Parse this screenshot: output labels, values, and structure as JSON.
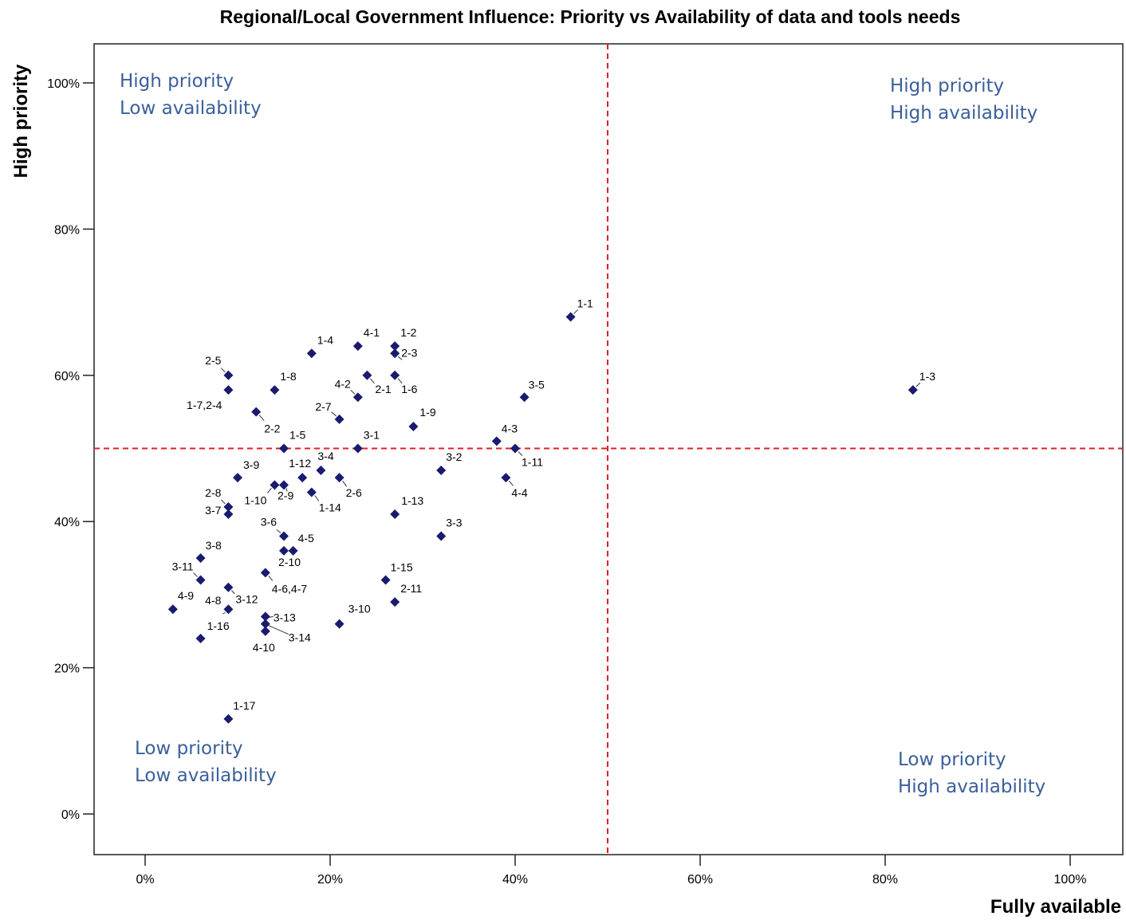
{
  "chart_data": {
    "type": "scatter",
    "title": "Regional/Local Government Influence: Priority vs Availability of data and tools needs",
    "xlabel": "Fully available",
    "ylabel": "High priority",
    "xlim": [
      -5,
      105
    ],
    "ylim": [
      -5,
      105
    ],
    "x_ticks": [
      {
        "value": 0,
        "label": "0%"
      },
      {
        "value": 20,
        "label": "20%"
      },
      {
        "value": 40,
        "label": "40%"
      },
      {
        "value": 60,
        "label": "60%"
      },
      {
        "value": 80,
        "label": "80%"
      },
      {
        "value": 100,
        "label": "100%"
      }
    ],
    "y_ticks": [
      {
        "value": 0,
        "label": "0%"
      },
      {
        "value": 20,
        "label": "20%"
      },
      {
        "value": 40,
        "label": "40%"
      },
      {
        "value": 60,
        "label": "60%"
      },
      {
        "value": 80,
        "label": "80%"
      },
      {
        "value": 100,
        "label": "100%"
      }
    ],
    "reference_lines": {
      "x": 50,
      "y": 50,
      "color": "#e02020",
      "style": "dashed"
    },
    "point_color": "#1a1a6e",
    "quadrant_labels": [
      {
        "lines": [
          "High priority",
          "Low availability"
        ],
        "position": "top-left"
      },
      {
        "lines": [
          "High priority",
          "High availability"
        ],
        "position": "top-right"
      },
      {
        "lines": [
          "Low priority",
          "Low availability"
        ],
        "position": "bottom-left"
      },
      {
        "lines": [
          "Low priority",
          "High availability"
        ],
        "position": "bottom-right"
      }
    ],
    "grid": false,
    "legend": "none",
    "points": [
      {
        "x": 46,
        "y": 68,
        "label": "1-1"
      },
      {
        "x": 83,
        "y": 58,
        "label": "1-3"
      },
      {
        "x": 27,
        "y": 64,
        "label": "1-2"
      },
      {
        "x": 23,
        "y": 64,
        "label": "4-1"
      },
      {
        "x": 18,
        "y": 63,
        "label": "1-4"
      },
      {
        "x": 27,
        "y": 63,
        "label": "2-3"
      },
      {
        "x": 9,
        "y": 60,
        "label": "2-5"
      },
      {
        "x": 14,
        "y": 58,
        "label": "1-8"
      },
      {
        "x": 9,
        "y": 58,
        "label": "1-7,2-4"
      },
      {
        "x": 24,
        "y": 60,
        "label": "2-1"
      },
      {
        "x": 27,
        "y": 60,
        "label": "1-6"
      },
      {
        "x": 23,
        "y": 57,
        "label": "4-2"
      },
      {
        "x": 41,
        "y": 57,
        "label": "3-5"
      },
      {
        "x": 21,
        "y": 54,
        "label": "2-7"
      },
      {
        "x": 29,
        "y": 53,
        "label": "1-9"
      },
      {
        "x": 12,
        "y": 55,
        "label": "2-2"
      },
      {
        "x": 15,
        "y": 50,
        "label": "1-5"
      },
      {
        "x": 23,
        "y": 50,
        "label": "3-1"
      },
      {
        "x": 38,
        "y": 51,
        "label": "4-3"
      },
      {
        "x": 40,
        "y": 50,
        "label": "1-11"
      },
      {
        "x": 32,
        "y": 47,
        "label": "3-2"
      },
      {
        "x": 39,
        "y": 46,
        "label": "4-4"
      },
      {
        "x": 10,
        "y": 46,
        "label": "3-9"
      },
      {
        "x": 17,
        "y": 46,
        "label": "1-12"
      },
      {
        "x": 19,
        "y": 47,
        "label": "3-4"
      },
      {
        "x": 14,
        "y": 45,
        "label": "1-10"
      },
      {
        "x": 15,
        "y": 45,
        "label": "2-9"
      },
      {
        "x": 18,
        "y": 44,
        "label": "1-14"
      },
      {
        "x": 21,
        "y": 46,
        "label": "2-6"
      },
      {
        "x": 9,
        "y": 42,
        "label": "2-8"
      },
      {
        "x": 9,
        "y": 41,
        "label": "3-7"
      },
      {
        "x": 27,
        "y": 41,
        "label": "1-13"
      },
      {
        "x": 15,
        "y": 38,
        "label": "3-6"
      },
      {
        "x": 16,
        "y": 36,
        "label": "4-5"
      },
      {
        "x": 15,
        "y": 36,
        "label": "2-10"
      },
      {
        "x": 32,
        "y": 38,
        "label": "3-3"
      },
      {
        "x": 6,
        "y": 35,
        "label": "3-8"
      },
      {
        "x": 6,
        "y": 32,
        "label": "3-11"
      },
      {
        "x": 13,
        "y": 33,
        "label": "4-6,4-7"
      },
      {
        "x": 26,
        "y": 32,
        "label": "1-15"
      },
      {
        "x": 9,
        "y": 31,
        "label": "3-12"
      },
      {
        "x": 9,
        "y": 28,
        "label": "4-8"
      },
      {
        "x": 3,
        "y": 28,
        "label": "4-9"
      },
      {
        "x": 27,
        "y": 29,
        "label": "2-11"
      },
      {
        "x": 13,
        "y": 27,
        "label": "3-13"
      },
      {
        "x": 13,
        "y": 26,
        "label": "3-14"
      },
      {
        "x": 13,
        "y": 25,
        "label": "4-10"
      },
      {
        "x": 21,
        "y": 26,
        "label": "3-10"
      },
      {
        "x": 6,
        "y": 24,
        "label": "1-16"
      },
      {
        "x": 9,
        "y": 13,
        "label": "1-17"
      }
    ]
  }
}
